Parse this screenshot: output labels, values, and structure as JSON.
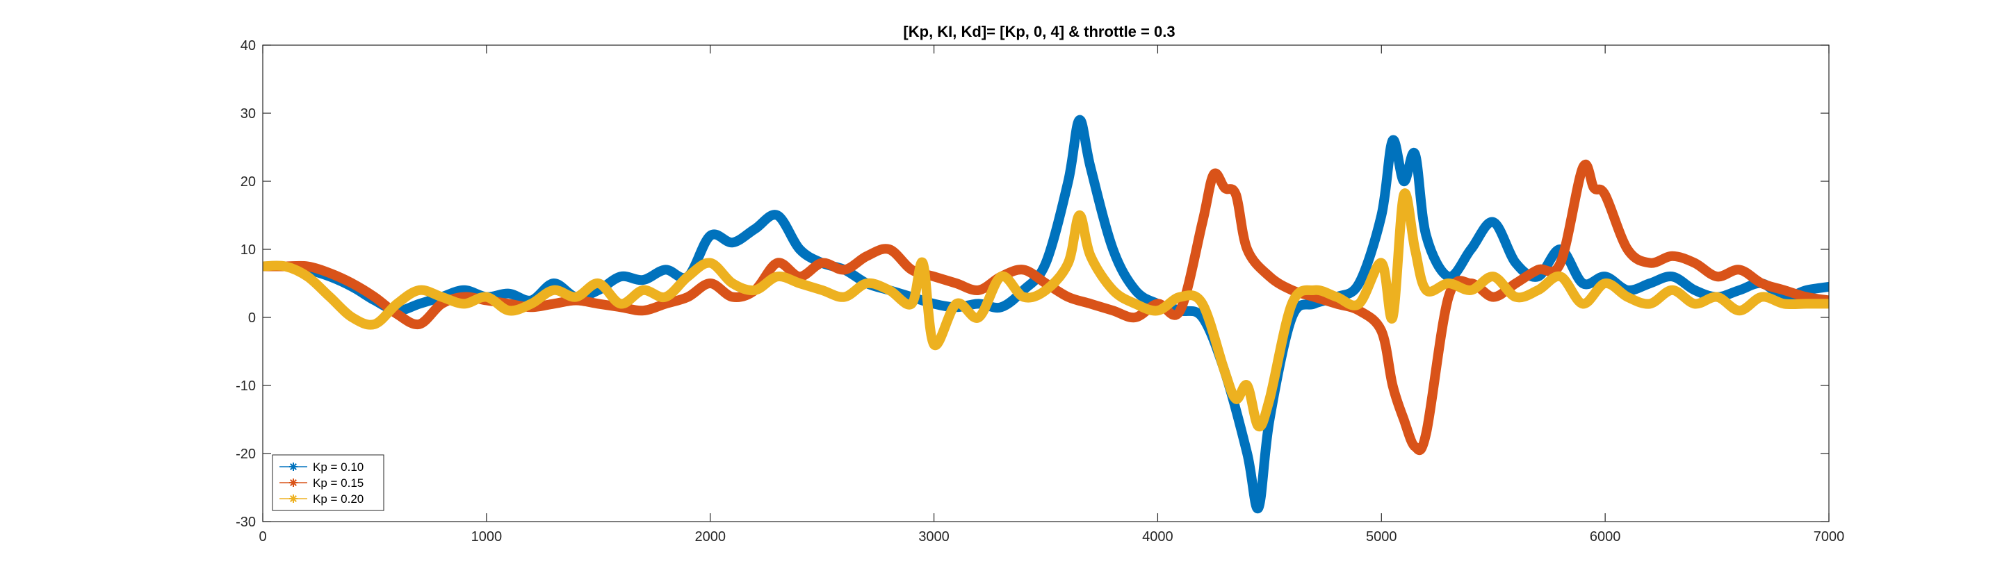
{
  "chart_data": {
    "type": "line",
    "title": "[Kp, KI, Kd]= [Kp, 0, 4] & throttle = 0.3",
    "xlabel": "",
    "ylabel": "",
    "xlim": [
      0,
      7000
    ],
    "ylim": [
      -30,
      40
    ],
    "xticks": [
      0,
      1000,
      2000,
      3000,
      4000,
      5000,
      6000,
      7000
    ],
    "yticks": [
      -30,
      -20,
      -10,
      0,
      10,
      20,
      30,
      40
    ],
    "grid": false,
    "legend_position": "bottom-left",
    "marker": "asterisk",
    "series": [
      {
        "name": "Kp = 0.10",
        "color": "#0072BD",
        "x": [
          0,
          100,
          200,
          300,
          400,
          500,
          600,
          700,
          800,
          900,
          1000,
          1100,
          1200,
          1300,
          1400,
          1500,
          1600,
          1700,
          1800,
          1900,
          2000,
          2100,
          2200,
          2300,
          2400,
          2500,
          2600,
          2700,
          2800,
          2900,
          3000,
          3100,
          3200,
          3300,
          3400,
          3500,
          3600,
          3650,
          3700,
          3800,
          3900,
          4000,
          4100,
          4200,
          4300,
          4400,
          4450,
          4500,
          4600,
          4700,
          4800,
          4900,
          5000,
          5050,
          5100,
          5150,
          5200,
          5300,
          5400,
          5500,
          5600,
          5700,
          5800,
          5900,
          6000,
          6100,
          6200,
          6300,
          6400,
          6500,
          6600,
          6700,
          6800,
          6900,
          7000
        ],
        "y": [
          7.5,
          7.5,
          7,
          6,
          4.5,
          2.5,
          1,
          2,
          3,
          4,
          3,
          3.5,
          2.5,
          5,
          3,
          4,
          6,
          5.5,
          7,
          6,
          12,
          11,
          13,
          15,
          10,
          8,
          7,
          5,
          4,
          3,
          2,
          1.5,
          2,
          1.5,
          4,
          8,
          20,
          29,
          22,
          10,
          4,
          2,
          1,
          0,
          -8,
          -20,
          -28,
          -15,
          0,
          2,
          3,
          5,
          15,
          26,
          20,
          24,
          12,
          6,
          10,
          14,
          8,
          6,
          10,
          5,
          6,
          4,
          5,
          6,
          4,
          3,
          4,
          5,
          3,
          4,
          4.5
        ]
      },
      {
        "name": "Kp = 0.15",
        "color": "#D95319",
        "x": [
          0,
          100,
          200,
          300,
          400,
          500,
          600,
          700,
          800,
          900,
          1000,
          1100,
          1200,
          1300,
          1400,
          1500,
          1600,
          1700,
          1800,
          1900,
          2000,
          2100,
          2200,
          2300,
          2400,
          2500,
          2600,
          2700,
          2800,
          2900,
          3000,
          3100,
          3200,
          3300,
          3400,
          3500,
          3600,
          3700,
          3800,
          3900,
          4000,
          4100,
          4200,
          4250,
          4300,
          4350,
          4400,
          4500,
          4600,
          4700,
          4800,
          4900,
          5000,
          5050,
          5100,
          5150,
          5200,
          5300,
          5400,
          5500,
          5600,
          5700,
          5800,
          5900,
          5950,
          6000,
          6100,
          6200,
          6300,
          6400,
          6500,
          6600,
          6700,
          6800,
          6900,
          7000
        ],
        "y": [
          7.5,
          7.5,
          7.5,
          6.5,
          5,
          3,
          0.5,
          -1,
          2,
          3,
          2.5,
          2,
          1.5,
          2,
          2.5,
          2,
          1.5,
          1,
          2,
          3,
          5,
          3,
          4,
          8,
          6,
          8,
          7,
          9,
          10,
          7,
          6,
          5,
          4,
          6,
          7,
          5,
          3,
          2,
          1,
          0,
          2,
          1,
          14,
          21,
          19,
          18,
          10,
          6,
          4,
          3,
          2,
          1,
          -2,
          -10,
          -15,
          -19,
          -17,
          3,
          5,
          3,
          5,
          7,
          8,
          22,
          19,
          18,
          10,
          8,
          9,
          8,
          6,
          7,
          5,
          4,
          3,
          2.5
        ]
      },
      {
        "name": "Kp = 0.20",
        "color": "#EDB120",
        "x": [
          0,
          100,
          200,
          300,
          400,
          500,
          600,
          700,
          800,
          900,
          1000,
          1100,
          1200,
          1300,
          1400,
          1500,
          1600,
          1700,
          1800,
          1900,
          2000,
          2100,
          2200,
          2300,
          2400,
          2500,
          2600,
          2700,
          2800,
          2900,
          2950,
          3000,
          3100,
          3200,
          3300,
          3400,
          3500,
          3600,
          3650,
          3700,
          3800,
          3900,
          4000,
          4100,
          4200,
          4300,
          4350,
          4400,
          4450,
          4500,
          4600,
          4700,
          4800,
          4900,
          5000,
          5050,
          5100,
          5150,
          5200,
          5300,
          5400,
          5500,
          5600,
          5700,
          5800,
          5900,
          6000,
          6100,
          6200,
          6300,
          6400,
          6500,
          6600,
          6700,
          6800,
          6900,
          7000
        ],
        "y": [
          7.5,
          7.5,
          6,
          3,
          0,
          -1,
          2,
          4,
          3,
          2,
          3,
          1,
          2,
          4,
          3,
          5,
          2,
          4,
          3,
          6,
          8,
          5,
          4,
          6,
          5,
          4,
          3,
          5,
          4,
          2,
          8,
          -4,
          2,
          0,
          6,
          3,
          4,
          8,
          15,
          9,
          4,
          2,
          1,
          3,
          2,
          -8,
          -12,
          -10,
          -16,
          -12,
          2,
          4,
          3,
          2,
          8,
          0,
          18,
          10,
          4,
          5,
          4,
          6,
          3,
          4,
          6,
          2,
          5,
          3,
          2,
          4,
          2,
          3,
          1,
          3,
          2,
          2,
          2
        ]
      }
    ]
  }
}
